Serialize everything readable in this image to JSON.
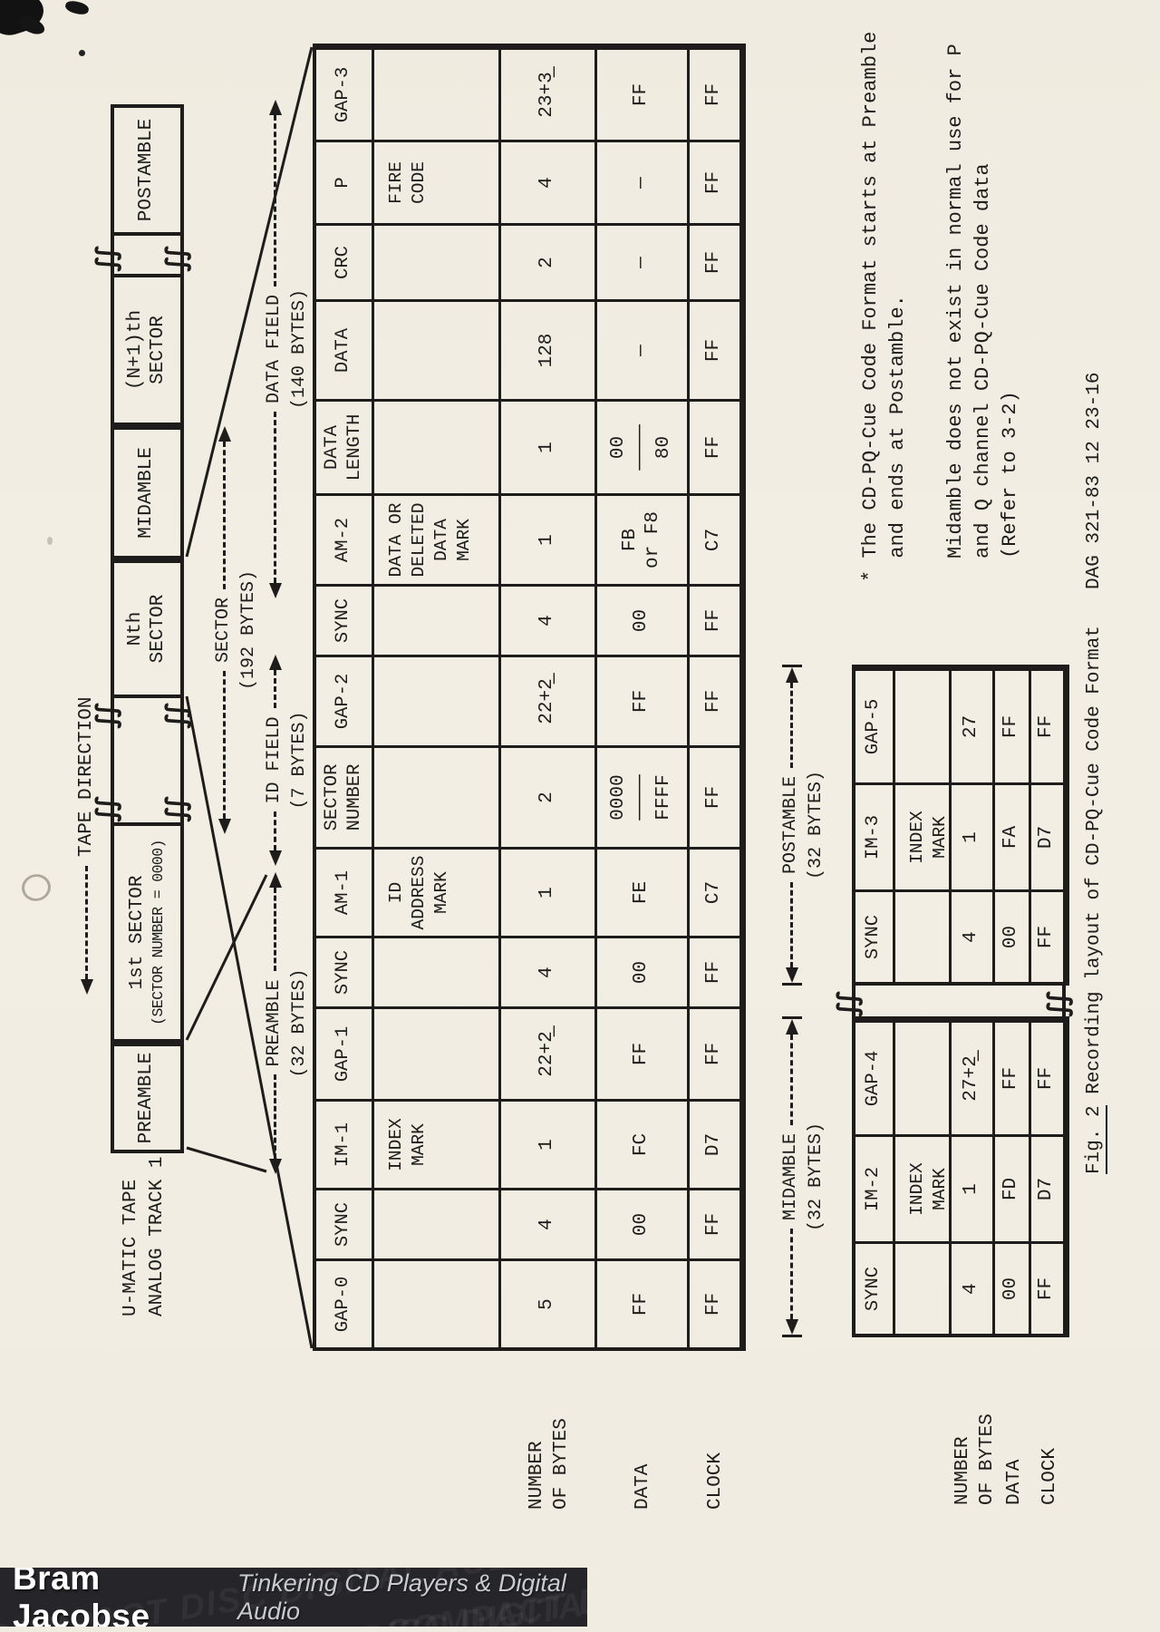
{
  "page": {
    "tape_direction": "TAPE DIRECTION",
    "track_label": "U-MATIC TAPE\nANALOG TRACK 1",
    "break_glyph": "∫∫",
    "tape_boxes": {
      "preamble": "PREAMBLE",
      "first_sector": "1st SECTOR",
      "first_sector_sub": "(SECTOR NUMBER = 0000)",
      "nth_sector": "Nth\nSECTOR",
      "midamble": "MIDAMBLE",
      "n1_sector": "(N+1)th\nSECTOR",
      "postamble": "POSTAMBLE"
    },
    "spans": {
      "sector": {
        "label": "SECTOR",
        "bytes": "(192 BYTES)"
      },
      "preamble": {
        "label": "PREAMBLE",
        "bytes": "(32 BYTES)"
      },
      "id_field": {
        "label": "ID FIELD",
        "bytes": "(7 BYTES)"
      },
      "data_field": {
        "label": "DATA FIELD",
        "bytes": "(140 BYTES)"
      },
      "midamble": {
        "label": "MIDAMBLE",
        "bytes": "(32 BYTES)"
      },
      "postamble": {
        "label": "POSTAMBLE",
        "bytes": "(32 BYTES)"
      }
    },
    "row_labels": {
      "bytes": "NUMBER\nOF BYTES",
      "data": "DATA",
      "clock": "CLOCK"
    },
    "main_table": [
      {
        "name": "GAP-0",
        "desc": "",
        "bytes": "5",
        "data": "FF",
        "clock": "FF"
      },
      {
        "name": "SYNC",
        "desc": "",
        "bytes": "4",
        "data": "00",
        "clock": "FF"
      },
      {
        "name": "IM-1",
        "desc": "INDEX\nMARK",
        "bytes": "1",
        "data": "FC",
        "clock": "D7"
      },
      {
        "name": "GAP-1",
        "desc": "",
        "bytes": "22+2̲",
        "data": "FF",
        "clock": "FF"
      },
      {
        "name": "SYNC",
        "desc": "",
        "bytes": "4",
        "data": "00",
        "clock": "FF"
      },
      {
        "name": "AM-1",
        "desc": "ID\nADDRESS\nMARK",
        "bytes": "1",
        "data": "FE",
        "clock": "C7"
      },
      {
        "name": "SECTOR\nNUMBER",
        "desc": "",
        "bytes": "2",
        "data": "0000\n────\nFFFF",
        "clock": "FF"
      },
      {
        "name": "GAP-2",
        "desc": "",
        "bytes": "22+2̲",
        "data": "FF",
        "clock": "FF"
      },
      {
        "name": "SYNC",
        "desc": "",
        "bytes": "4",
        "data": "00",
        "clock": "FF"
      },
      {
        "name": "AM-2",
        "desc": "DATA OR\nDELETED\nDATA\nMARK",
        "bytes": "1",
        "data": "FB\nor F8",
        "clock": "C7"
      },
      {
        "name": "DATA\nLENGTH",
        "desc": "",
        "bytes": "1",
        "data": "00\n────\n80",
        "clock": "FF"
      },
      {
        "name": "DATA",
        "desc": "",
        "bytes": "128",
        "data": "—",
        "clock": "FF"
      },
      {
        "name": "CRC",
        "desc": "",
        "bytes": "2",
        "data": "—",
        "clock": "FF"
      },
      {
        "name": "P",
        "desc": "FIRE\nCODE",
        "bytes": "4",
        "data": "—",
        "clock": "FF"
      },
      {
        "name": "GAP-3",
        "desc": "",
        "bytes": "23+3̲",
        "data": "FF",
        "clock": "FF"
      }
    ],
    "midamble_table": [
      {
        "name": "SYNC",
        "desc": "",
        "bytes": "4",
        "data": "00",
        "clock": "FF"
      },
      {
        "name": "IM-2",
        "desc": "INDEX\nMARK",
        "bytes": "1",
        "data": "FD",
        "clock": "D7"
      },
      {
        "name": "GAP-4",
        "desc": "",
        "bytes": "27+2̲",
        "data": "FF",
        "clock": "FF"
      }
    ],
    "postamble_table": [
      {
        "name": "SYNC",
        "desc": "",
        "bytes": "4",
        "data": "00",
        "clock": "FF"
      },
      {
        "name": "IM-3",
        "desc": "INDEX\nMARK",
        "bytes": "1",
        "data": "FA",
        "clock": "D7"
      },
      {
        "name": "GAP-5",
        "desc": "",
        "bytes": "27",
        "data": "FF",
        "clock": "FF"
      }
    ],
    "notes": {
      "star": "* The CD-PQ-Cue Code Format starts at Preamble\n  and ends at Postamble.",
      "midamble": "Midamble does not exist in normal use for P\nand Q channel CD-PQ-Cue Code data\n(Refer to 3-2)",
      "doc_number": "DAG 321-83 12 23-16"
    },
    "caption": {
      "fig": "Fig. 2",
      "text": " Recording layout of CD-PQ-Cue Code Format"
    }
  },
  "footer": {
    "name": "Bram Jacobse",
    "tagline": "Tinkering CD Players & Digital Audio",
    "pattern": "COMPACT DISC DIGITAL AUDIO COMPACT"
  },
  "colors": {
    "paper": "#f0ece1",
    "ink": "#1e1d1b",
    "footer_bg": "#26252a"
  }
}
